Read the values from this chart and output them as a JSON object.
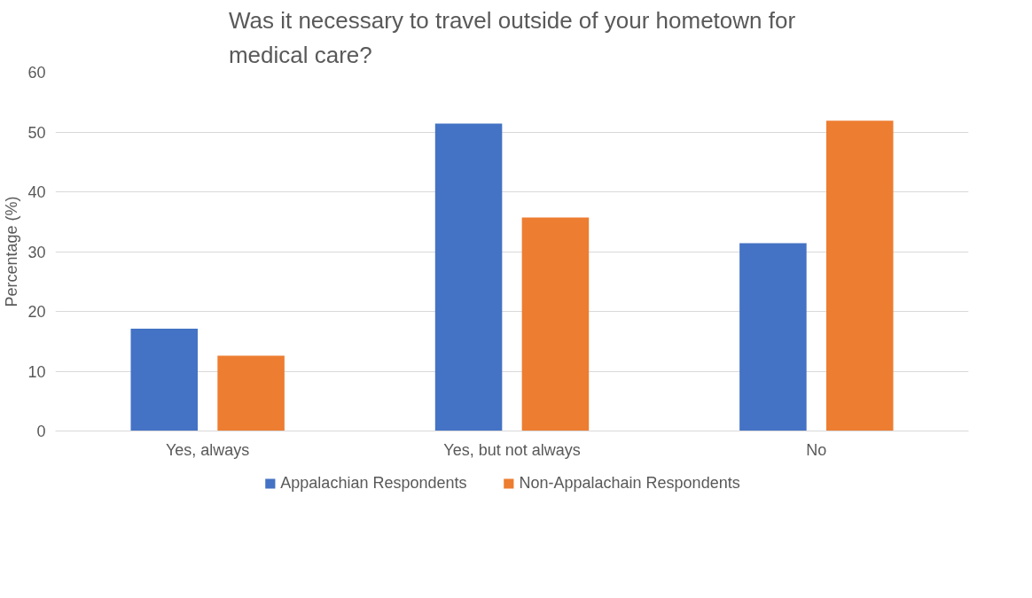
{
  "chart_data": {
    "type": "bar",
    "title": "Was it necessary to travel outside of your hometown for medical care?",
    "ylabel": "Percentage (%)",
    "categories": [
      "Yes, always",
      "Yes, but not always",
      "No"
    ],
    "series": [
      {
        "name": "Appalachian Respondents",
        "color": "#4472c4",
        "values": [
          17.1,
          51.4,
          31.4
        ]
      },
      {
        "name": "Non-Appalachain Respondents",
        "color": "#ed7d31",
        "values": [
          12.6,
          35.7,
          51.9
        ]
      }
    ],
    "ylim": [
      0,
      60
    ],
    "yticks": [
      0,
      10,
      20,
      30,
      40,
      50,
      60
    ],
    "grid": "y",
    "legend": "bottom"
  }
}
